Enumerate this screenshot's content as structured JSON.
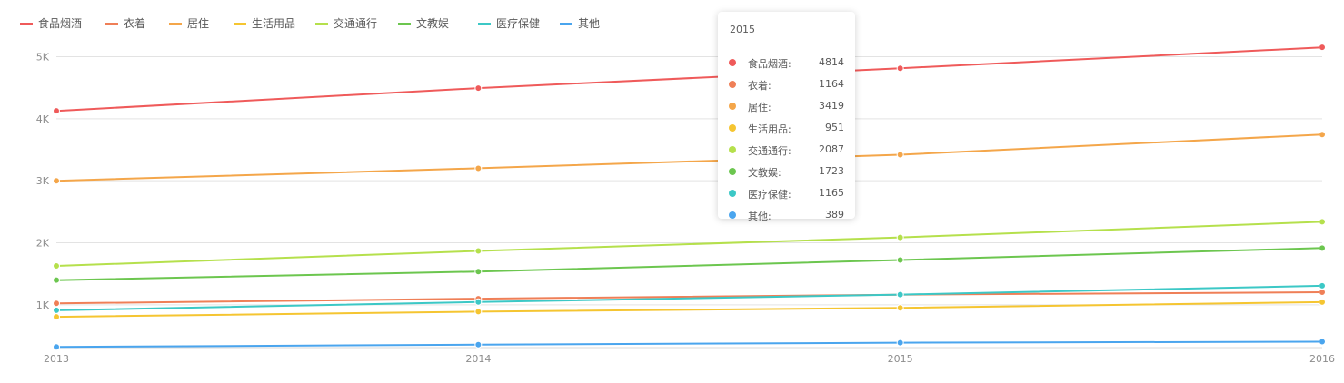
{
  "chart_data": {
    "type": "line",
    "x": [
      "2013",
      "2014",
      "2015",
      "2016"
    ],
    "y_ticks": [
      "1K",
      "2K",
      "3K",
      "4K",
      "5K"
    ],
    "ylim": [
      300,
      5300
    ],
    "grid": true,
    "legend_position": "top-left",
    "series": [
      {
        "name": "食品烟酒",
        "color": "#ef5a5a",
        "values": [
          4127,
          4493,
          4814,
          5151
        ]
      },
      {
        "name": "衣着",
        "color": "#ef7f57",
        "values": [
          1023,
          1099,
          1164,
          1203
        ]
      },
      {
        "name": "居住",
        "color": "#f4a64a",
        "values": [
          2999,
          3201,
          3419,
          3746
        ]
      },
      {
        "name": "生活用品",
        "color": "#f5c531",
        "values": [
          806,
          890,
          951,
          1044
        ]
      },
      {
        "name": "交通通行",
        "color": "#b5e04c",
        "values": [
          1627,
          1869,
          2087,
          2338
        ]
      },
      {
        "name": "文教娱",
        "color": "#6cc64f",
        "values": [
          1398,
          1536,
          1723,
          1915
        ]
      },
      {
        "name": "医疗保健",
        "color": "#3cc8c6",
        "values": [
          912,
          1045,
          1165,
          1307
        ]
      },
      {
        "name": "其他",
        "color": "#4aa5ee",
        "values": [
          322,
          357,
          389,
          406
        ]
      }
    ]
  },
  "tooltip": {
    "title": "2015",
    "rows": [
      {
        "name": "食品烟酒:",
        "value": "4814",
        "color": "#ef5a5a"
      },
      {
        "name": "衣着:",
        "value": "1164",
        "color": "#ef7f57"
      },
      {
        "name": "居住:",
        "value": "3419",
        "color": "#f4a64a"
      },
      {
        "name": "生活用品:",
        "value": "951",
        "color": "#f5c531"
      },
      {
        "name": "交通通行:",
        "value": "2087",
        "color": "#b5e04c"
      },
      {
        "name": "文教娱:",
        "value": "1723",
        "color": "#6cc64f"
      },
      {
        "name": "医疗保健:",
        "value": "1165",
        "color": "#3cc8c6"
      },
      {
        "name": "其他:",
        "value": "389",
        "color": "#4aa5ee"
      }
    ]
  }
}
